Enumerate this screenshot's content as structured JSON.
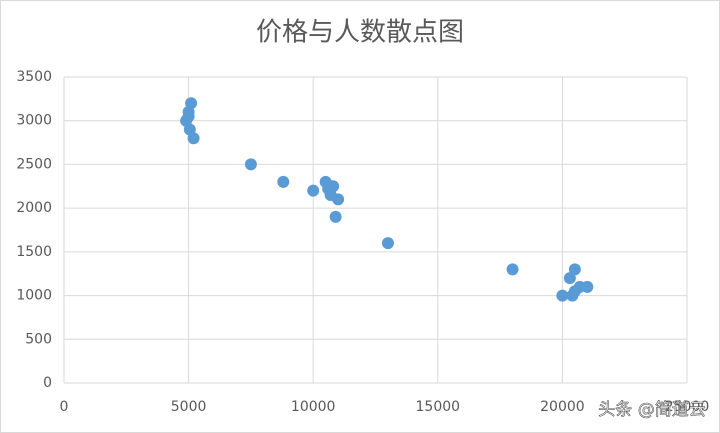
{
  "chart_data": {
    "type": "scatter",
    "title": "价格与人数散点图",
    "series": [
      {
        "color": "#5b9bd5",
        "x": [
          4900,
          5000,
          5100,
          5000,
          5050,
          5200,
          7500,
          8800,
          10000,
          10500,
          10600,
          10800,
          10700,
          11000,
          10900,
          13000,
          18000,
          20000,
          20300,
          20500,
          20400,
          20500,
          20700,
          21000
        ],
        "values": [
          3000,
          3100,
          3200,
          3050,
          2900,
          2800,
          2500,
          2300,
          2200,
          2300,
          2220,
          2250,
          2150,
          2100,
          1900,
          1600,
          1300,
          1000,
          1200,
          1300,
          1000,
          1050,
          1100,
          1100
        ]
      }
    ],
    "xlim": [
      0,
      25000
    ],
    "xticks": [
      0,
      5000,
      10000,
      15000,
      20000,
      25000
    ],
    "ylim": [
      0,
      3500
    ],
    "yticks": [
      0,
      500,
      1000,
      1500,
      2000,
      2500,
      3000,
      3500
    ],
    "grid": true,
    "watermark": "头条 @简道云"
  }
}
